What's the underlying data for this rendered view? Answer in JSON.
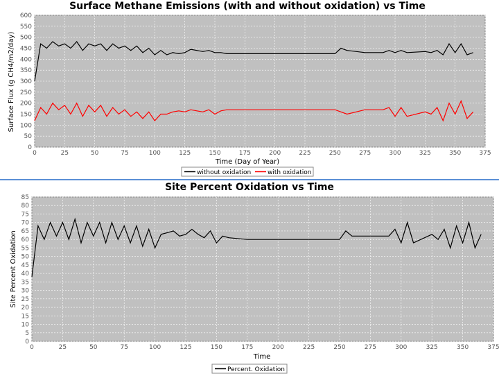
{
  "chart_data": [
    {
      "type": "line",
      "title": "Surface Methane Emissions (with and without oxidation) vs Time",
      "xlabel": "Time (Day of Year)",
      "ylabel": "Surface Flux (g CH4/m2/day)",
      "xlim": [
        0,
        375
      ],
      "ylim": [
        0,
        600
      ],
      "xticks": [
        0,
        25,
        50,
        75,
        100,
        125,
        150,
        175,
        200,
        225,
        250,
        275,
        300,
        325,
        350,
        375
      ],
      "yticks": [
        0,
        50,
        100,
        150,
        200,
        250,
        300,
        350,
        400,
        450,
        500,
        550,
        600
      ],
      "grid": true,
      "legend_position": "bottom-center",
      "series": [
        {
          "name": "without oxidation",
          "color": "#000000",
          "x": [
            0,
            5,
            10,
            15,
            20,
            25,
            30,
            35,
            40,
            45,
            50,
            55,
            60,
            65,
            70,
            75,
            80,
            85,
            90,
            95,
            100,
            105,
            110,
            115,
            120,
            125,
            130,
            135,
            140,
            145,
            150,
            155,
            160,
            175,
            200,
            225,
            250,
            255,
            260,
            275,
            290,
            295,
            300,
            305,
            310,
            325,
            330,
            335,
            340,
            345,
            350,
            355,
            360,
            365
          ],
          "y": [
            300,
            470,
            450,
            480,
            460,
            470,
            450,
            480,
            440,
            470,
            460,
            470,
            440,
            470,
            450,
            460,
            440,
            460,
            430,
            450,
            420,
            440,
            420,
            430,
            425,
            430,
            445,
            440,
            435,
            440,
            430,
            430,
            425,
            425,
            425,
            425,
            425,
            450,
            440,
            430,
            430,
            440,
            430,
            440,
            430,
            435,
            430,
            440,
            420,
            470,
            430,
            470,
            420,
            430
          ]
        },
        {
          "name": "with oxidation",
          "color": "#ff0000",
          "x": [
            0,
            5,
            10,
            15,
            20,
            25,
            30,
            35,
            40,
            45,
            50,
            55,
            60,
            65,
            70,
            75,
            80,
            85,
            90,
            95,
            100,
            105,
            110,
            115,
            120,
            125,
            130,
            135,
            140,
            145,
            150,
            155,
            160,
            175,
            200,
            225,
            250,
            255,
            260,
            275,
            290,
            295,
            300,
            305,
            310,
            325,
            330,
            335,
            340,
            345,
            350,
            355,
            360,
            365
          ],
          "y": [
            120,
            180,
            150,
            200,
            170,
            190,
            150,
            200,
            140,
            190,
            160,
            190,
            140,
            180,
            150,
            170,
            140,
            160,
            130,
            160,
            120,
            150,
            150,
            160,
            165,
            160,
            170,
            165,
            160,
            170,
            150,
            165,
            170,
            170,
            170,
            170,
            170,
            160,
            150,
            170,
            170,
            180,
            140,
            180,
            140,
            160,
            150,
            180,
            120,
            200,
            150,
            210,
            130,
            160
          ]
        }
      ]
    },
    {
      "type": "line",
      "title": "Site Percent Oxidation vs Time",
      "xlabel": "Time",
      "ylabel": "Site Percent Oxidation",
      "xlim": [
        0,
        375
      ],
      "ylim": [
        0,
        85
      ],
      "xticks": [
        0,
        25,
        50,
        75,
        100,
        125,
        150,
        175,
        200,
        225,
        250,
        275,
        300,
        325,
        350,
        375
      ],
      "yticks": [
        0,
        5,
        10,
        15,
        20,
        25,
        30,
        35,
        40,
        45,
        50,
        55,
        60,
        65,
        70,
        75,
        80,
        85
      ],
      "grid": true,
      "legend_position": "bottom-center",
      "series": [
        {
          "name": "Percent. Oxidation",
          "color": "#000000",
          "x": [
            0,
            5,
            10,
            15,
            20,
            25,
            30,
            35,
            40,
            45,
            50,
            55,
            60,
            65,
            70,
            75,
            80,
            85,
            90,
            95,
            100,
            105,
            110,
            115,
            120,
            125,
            130,
            135,
            140,
            145,
            150,
            155,
            160,
            175,
            200,
            225,
            250,
            255,
            260,
            275,
            290,
            295,
            300,
            305,
            310,
            325,
            330,
            335,
            340,
            345,
            350,
            355,
            360,
            365
          ],
          "y": [
            38,
            68,
            60,
            70,
            62,
            70,
            60,
            72,
            58,
            70,
            62,
            70,
            58,
            70,
            60,
            68,
            58,
            68,
            56,
            66,
            55,
            63,
            64,
            65,
            62,
            63,
            66,
            63,
            61,
            65,
            58,
            62,
            61,
            60,
            60,
            60,
            60,
            65,
            62,
            62,
            62,
            66,
            58,
            70,
            58,
            63,
            60,
            66,
            55,
            68,
            58,
            70,
            55,
            63
          ]
        }
      ]
    }
  ]
}
